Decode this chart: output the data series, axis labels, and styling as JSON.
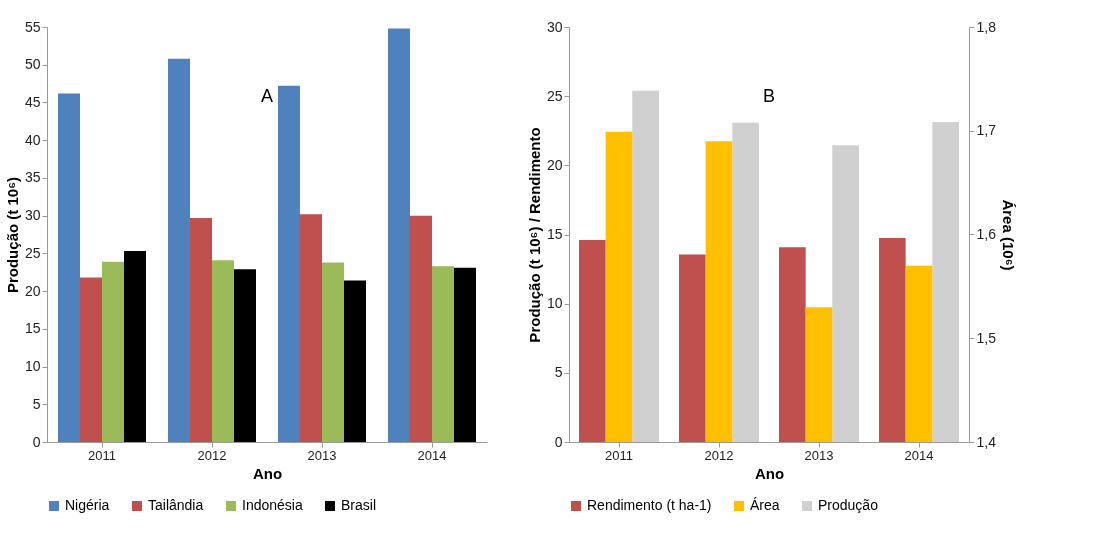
{
  "chart_data": [
    {
      "type": "bar",
      "categories": [
        "2011",
        "2012",
        "2013",
        "2014"
      ],
      "xlabel": "Ano",
      "ylabel": "Produção (t 10⁶)",
      "ylim": [
        0,
        55
      ],
      "yticks": [
        0,
        5,
        10,
        15,
        20,
        25,
        30,
        35,
        40,
        45,
        50,
        55
      ],
      "grid": false,
      "legend": "bottom",
      "annotations": [
        "A"
      ],
      "series": [
        {
          "name": "Nigéria",
          "color": "#4f81bd",
          "values": [
            46.2,
            50.8,
            47.2,
            54.8
          ]
        },
        {
          "name": "Tailândia",
          "color": "#c0504d",
          "values": [
            21.8,
            29.7,
            30.2,
            30.0
          ]
        },
        {
          "name": "Indonésia",
          "color": "#9bbb59",
          "values": [
            23.9,
            24.1,
            23.8,
            23.3
          ]
        },
        {
          "name": "Brasil",
          "color": "#000000",
          "values": [
            25.3,
            22.9,
            21.4,
            23.1
          ]
        }
      ]
    },
    {
      "type": "bar",
      "categories": [
        "2011",
        "2012",
        "2013",
        "2014"
      ],
      "xlabel": "Ano",
      "ylabel": "Produção (t 10⁶) / Rendimento",
      "y2label": "Área (10⁶)",
      "ylim": [
        0,
        30
      ],
      "yticks": [
        0,
        5,
        10,
        15,
        20,
        25,
        30
      ],
      "y2lim": [
        1.4,
        1.8
      ],
      "y2ticks": [
        {
          "value": 1.4,
          "label": "1,4"
        },
        {
          "value": 1.5,
          "label": "1,5"
        },
        {
          "value": 1.6,
          "label": "1,6"
        },
        {
          "value": 1.7,
          "label": "1,7"
        },
        {
          "value": 1.8,
          "label": "1,8"
        }
      ],
      "grid": false,
      "legend": "bottom",
      "annotations": [
        "B"
      ],
      "series": [
        {
          "name": "Rendimento (t ha-1)",
          "color": "#c0504d",
          "values": [
            14.6,
            13.55,
            14.07,
            14.74
          ]
        },
        {
          "name": "Área",
          "color": "#ffc000",
          "axis": "y2",
          "values": [
            1.699,
            1.69,
            1.53,
            1.57
          ]
        },
        {
          "name": "Produção",
          "color": "#d0d0d0",
          "values": [
            25.4,
            23.07,
            21.46,
            23.14
          ]
        }
      ]
    }
  ]
}
